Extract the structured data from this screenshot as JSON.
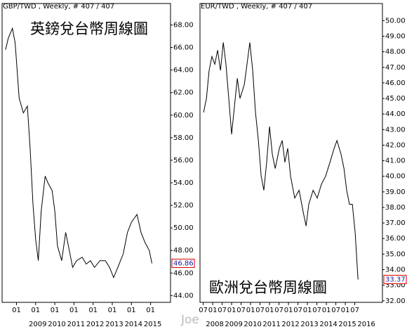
{
  "chart_data": [
    {
      "type": "line",
      "header": "GBP/TWD , Weekly, # 407 / 407",
      "title": "英鎊兌台幣周線圖",
      "color": "#000000",
      "x": [
        2007.43,
        2007.57,
        2007.79,
        2007.93,
        2008.14,
        2008.36,
        2008.57,
        2008.71,
        2008.86,
        2009.0,
        2009.14,
        2009.29,
        2009.5,
        2009.64,
        2009.86,
        2010.0,
        2010.14,
        2010.36,
        2010.57,
        2010.71,
        2010.93,
        2011.14,
        2011.43,
        2011.64,
        2011.86,
        2012.07,
        2012.36,
        2012.64,
        2012.86,
        2013.07,
        2013.29,
        2013.57,
        2013.79,
        2014.0,
        2014.29,
        2014.5,
        2014.71,
        2014.93,
        2015.07
      ],
      "values": [
        65.8,
        66.8,
        67.7,
        66.4,
        61.5,
        60.2,
        60.8,
        57.1,
        52.1,
        49.0,
        47.1,
        51.5,
        54.6,
        54.0,
        53.3,
        51.5,
        48.4,
        47.1,
        49.6,
        48.4,
        46.5,
        47.1,
        47.4,
        46.8,
        47.1,
        46.5,
        47.1,
        47.1,
        46.5,
        45.6,
        46.5,
        47.7,
        49.6,
        50.5,
        51.2,
        49.6,
        48.7,
        48.0,
        46.86
      ],
      "last_value": 46.86,
      "xlim": [
        2007.25,
        2016.04
      ],
      "ylim": [
        43.4,
        69.9
      ],
      "xticks": [
        {
          "value": 2008,
          "label": "01"
        },
        {
          "value": 2009,
          "label": "01"
        },
        {
          "value": 2010,
          "label": "01"
        },
        {
          "value": 2011,
          "label": "01"
        },
        {
          "value": 2012,
          "label": "01"
        },
        {
          "value": 2013,
          "label": "01"
        },
        {
          "value": 2014,
          "label": "01"
        },
        {
          "value": 2015,
          "label": "01"
        }
      ],
      "year_labels": [
        2009,
        2010,
        2011,
        2012,
        2013,
        2014,
        2015
      ],
      "yticks": [
        {
          "value": 44,
          "label": "44.00"
        },
        {
          "value": 46,
          "label": "46.00"
        },
        {
          "value": 48,
          "label": "48.00"
        },
        {
          "value": 50,
          "label": "50.00"
        },
        {
          "value": 52,
          "label": "52.00"
        },
        {
          "value": 54,
          "label": "54.00"
        },
        {
          "value": 56,
          "label": "56.00"
        },
        {
          "value": 58,
          "label": "58.00"
        },
        {
          "value": 60,
          "label": "60.00"
        },
        {
          "value": 62,
          "label": "62.00"
        },
        {
          "value": 64,
          "label": "64.00"
        },
        {
          "value": 66,
          "label": "66.00"
        },
        {
          "value": 68,
          "label": "68.00"
        }
      ]
    },
    {
      "type": "line",
      "header": "EUR/TWD , Weekly, # 407 / 407",
      "title": "歐洲兌台幣周線圖",
      "color": "#000000",
      "x": [
        2007.52,
        2007.67,
        2007.81,
        2007.96,
        2008.11,
        2008.26,
        2008.41,
        2008.56,
        2008.7,
        2008.85,
        2009.0,
        2009.15,
        2009.3,
        2009.44,
        2009.67,
        2009.81,
        2009.96,
        2010.11,
        2010.26,
        2010.41,
        2010.56,
        2010.7,
        2010.85,
        2011.0,
        2011.15,
        2011.3,
        2011.52,
        2011.67,
        2011.81,
        2011.96,
        2012.11,
        2012.33,
        2012.56,
        2012.78,
        2012.93,
        2013.07,
        2013.3,
        2013.52,
        2013.74,
        2013.96,
        2014.19,
        2014.41,
        2014.56,
        2014.78,
        2014.93,
        2015.07,
        2015.22,
        2015.37,
        2015.52,
        2015.59,
        2015.67
      ],
      "values": [
        44.1,
        45.0,
        46.8,
        47.7,
        47.2,
        48.1,
        46.8,
        48.6,
        47.2,
        45.0,
        42.7,
        44.5,
        46.3,
        45.0,
        45.9,
        47.2,
        48.6,
        46.8,
        44.1,
        42.3,
        40.0,
        39.1,
        40.9,
        43.2,
        41.4,
        40.5,
        41.8,
        42.3,
        40.9,
        41.8,
        40.0,
        38.6,
        39.1,
        37.7,
        36.8,
        38.2,
        39.1,
        38.6,
        39.5,
        40.0,
        40.9,
        41.8,
        42.3,
        41.4,
        40.5,
        39.1,
        38.2,
        38.2,
        36.4,
        35.0,
        33.37
      ],
      "last_value": 33.37,
      "xlim": [
        2007.33,
        2016.96
      ],
      "ylim": [
        31.9,
        51.1
      ],
      "xticks": [
        {
          "value": 2007.5,
          "label": "07"
        },
        {
          "value": 2008,
          "label": "01"
        },
        {
          "value": 2008.5,
          "label": "07"
        },
        {
          "value": 2009,
          "label": "01"
        },
        {
          "value": 2009.5,
          "label": "07"
        },
        {
          "value": 2010,
          "label": "01"
        },
        {
          "value": 2010.5,
          "label": "07"
        },
        {
          "value": 2011,
          "label": "01"
        },
        {
          "value": 2011.5,
          "label": "07"
        },
        {
          "value": 2012,
          "label": "01"
        },
        {
          "value": 2012.5,
          "label": "07"
        },
        {
          "value": 2013,
          "label": "01"
        },
        {
          "value": 2013.5,
          "label": "07"
        },
        {
          "value": 2014,
          "label": "01"
        },
        {
          "value": 2014.5,
          "label": "07"
        },
        {
          "value": 2015,
          "label": "01"
        },
        {
          "value": 2015.5,
          "label": "07"
        }
      ],
      "year_labels": [
        2008,
        2009,
        2010,
        2011,
        2012,
        2013,
        2014,
        2015,
        2016
      ],
      "yticks": [
        {
          "value": 32,
          "label": "32.00"
        },
        {
          "value": 33,
          "label": "33.00"
        },
        {
          "value": 34,
          "label": "34.00"
        },
        {
          "value": 35,
          "label": "35.00"
        },
        {
          "value": 36,
          "label": "36.00"
        },
        {
          "value": 37,
          "label": "37.00"
        },
        {
          "value": 38,
          "label": "38.00"
        },
        {
          "value": 39,
          "label": "39.00"
        },
        {
          "value": 40,
          "label": "40.00"
        },
        {
          "value": 41,
          "label": "41.00"
        },
        {
          "value": 42,
          "label": "42.00"
        },
        {
          "value": 43,
          "label": "43.00"
        },
        {
          "value": 44,
          "label": "44.00"
        },
        {
          "value": 45,
          "label": "45.00"
        },
        {
          "value": 46,
          "label": "46.00"
        },
        {
          "value": 47,
          "label": "47.00"
        },
        {
          "value": 48,
          "label": "48.00"
        },
        {
          "value": 49,
          "label": "49.00"
        },
        {
          "value": 50,
          "label": "50.00"
        }
      ]
    }
  ],
  "watermark": "Joe"
}
